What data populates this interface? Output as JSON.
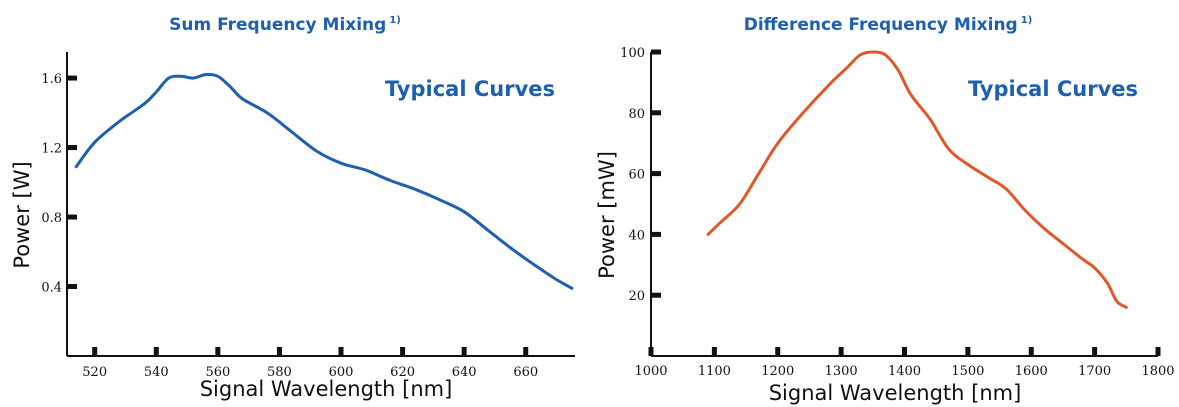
{
  "chart_data": [
    {
      "type": "line",
      "title": "Sum Frequency Mixing",
      "title_superscript": "1)",
      "annotation": "Typical Curves",
      "xlabel": "Signal Wavelength [nm]",
      "ylabel": "Power [W]",
      "xlim": [
        511,
        676
      ],
      "ylim": [
        0,
        1.75
      ],
      "xticks": [
        520,
        540,
        560,
        580,
        600,
        620,
        640,
        660
      ],
      "xtick_labels": [
        "520",
        "540",
        "560",
        "580",
        "600",
        "620",
        "640",
        "660"
      ],
      "yticks": [
        0.4,
        0.8,
        1.2,
        1.6
      ],
      "ytick_labels": [
        "0.4",
        "0.8",
        "1.2",
        "1.6"
      ],
      "grid": false,
      "color": "#1f5fb0",
      "x": [
        514,
        520,
        528,
        536,
        540,
        544,
        548,
        552,
        556,
        560,
        564,
        568,
        576,
        584,
        592,
        600,
        608,
        616,
        624,
        632,
        640,
        648,
        656,
        664,
        670,
        675
      ],
      "y": [
        1.09,
        1.23,
        1.35,
        1.45,
        1.52,
        1.6,
        1.61,
        1.6,
        1.62,
        1.61,
        1.55,
        1.48,
        1.4,
        1.29,
        1.18,
        1.11,
        1.07,
        1.01,
        0.96,
        0.9,
        0.83,
        0.72,
        0.61,
        0.51,
        0.44,
        0.39
      ]
    },
    {
      "type": "line",
      "title": "Difference Frequency Mixing",
      "title_superscript": "1)",
      "annotation": "Typical Curves",
      "xlabel": "Signal Wavelength [nm]",
      "ylabel": "Power [mW]",
      "xlim": [
        1000,
        1800
      ],
      "ylim": [
        0,
        100
      ],
      "xticks": [
        1000,
        1100,
        1200,
        1300,
        1400,
        1500,
        1600,
        1700,
        1800
      ],
      "xtick_labels": [
        "1000",
        "1100",
        "1200",
        "1300",
        "1400",
        "1500",
        "1600",
        "1700",
        "1800"
      ],
      "yticks": [
        20,
        40,
        60,
        80,
        100
      ],
      "ytick_labels": [
        "20",
        "40",
        "60",
        "80",
        "100"
      ],
      "grid": false,
      "color": "#e0582a",
      "x": [
        1090,
        1110,
        1140,
        1170,
        1200,
        1240,
        1280,
        1310,
        1330,
        1350,
        1370,
        1390,
        1410,
        1440,
        1470,
        1500,
        1530,
        1560,
        1590,
        1620,
        1650,
        1680,
        1700,
        1720,
        1735,
        1750
      ],
      "y": [
        40,
        44,
        50,
        60,
        70,
        80,
        89,
        95,
        99,
        100,
        99,
        94,
        86,
        78,
        68,
        63,
        59,
        55,
        48,
        42,
        37,
        32,
        29,
        24,
        18,
        16
      ]
    }
  ]
}
